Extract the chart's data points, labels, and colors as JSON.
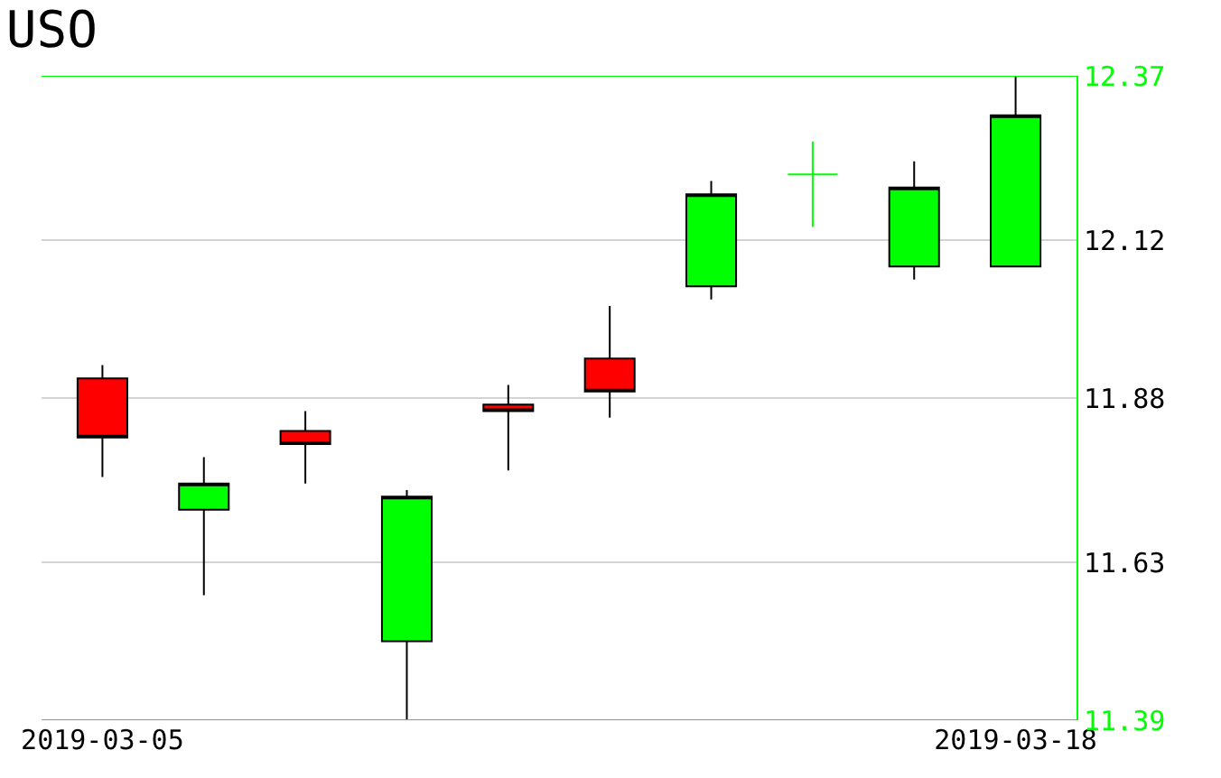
{
  "chart_data": {
    "type": "candlestick",
    "title": "USO",
    "categories": [
      "2019-03-05",
      null,
      null,
      null,
      null,
      null,
      null,
      null,
      null,
      "2019-03-18"
    ],
    "ohlc": [
      [
        11.91,
        11.93,
        11.76,
        11.82
      ],
      [
        11.71,
        11.79,
        11.58,
        11.75
      ],
      [
        11.83,
        11.86,
        11.75,
        11.81
      ],
      [
        11.51,
        11.74,
        11.39,
        11.73
      ],
      [
        11.87,
        11.9,
        11.77,
        11.86
      ],
      [
        11.94,
        12.02,
        11.85,
        11.89
      ],
      [
        12.05,
        12.21,
        12.03,
        12.19
      ],
      [
        12.22,
        12.27,
        12.14,
        12.22
      ],
      [
        12.08,
        12.24,
        12.06,
        12.2
      ],
      [
        12.08,
        12.37,
        12.08,
        12.31
      ]
    ],
    "colors": [
      "#ff0000",
      "#00ff00",
      "#ff0000",
      "#00ff00",
      "#ff0000",
      "#ff0000",
      "#00ff00",
      "#00ff00",
      "#00ff00",
      "#00ff00"
    ],
    "ylim": [
      11.39,
      12.37
    ],
    "yticks": [
      11.39,
      11.63,
      11.88,
      12.12,
      12.37
    ],
    "grid": "y"
  }
}
